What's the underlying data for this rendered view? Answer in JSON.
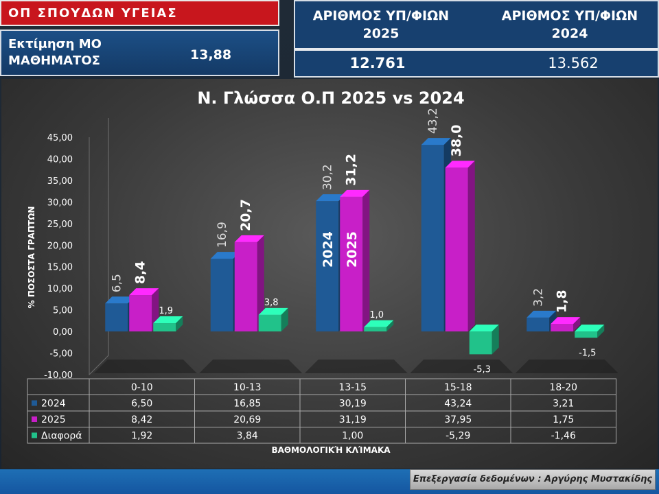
{
  "header": {
    "field_title": "ΟΠ ΣΠΟΥΔΩΝ ΥΓΕΙΑΣ",
    "estimate_label": "Εκτίμηση ΜΟ ΜΑΘΗΜΑΤΟΣ",
    "estimate_value": "13,88",
    "candidates_2025_label": "ΑΡΙΘΜΟΣ ΥΠ/ΦΙΩΝ 2025",
    "candidates_2024_label": "ΑΡΙΘΜΟΣ ΥΠ/ΦΙΩΝ 2024",
    "candidates_2025_value": "12.761",
    "candidates_2024_value": "13.562"
  },
  "footer": {
    "credit": "Επεξεργασία δεδομένων : Αργύρης Μυστακίδης"
  },
  "colors": {
    "title_red": "#c8161d",
    "panel_blue": "#17406f",
    "series_2024": "#1f5a96",
    "series_2025": "#c81fc8",
    "series_diff": "#21c28a"
  },
  "chart_data": {
    "type": "bar",
    "title": "Ν. Γλώσσα Ο.Π 2025 vs 2024",
    "xlabel": "ΒΑΘΜΟΛΟΓΙΚΉ ΚΛΊΜΑΚΑ",
    "ylabel": "% ΠΟΣΟΣΤΑ ΓΡΑΠΤΩΝ",
    "ylim": [
      -10,
      45
    ],
    "yticks": [
      "-10,00",
      "-5,00",
      "0,00",
      "5,00",
      "10,00",
      "15,00",
      "20,00",
      "25,00",
      "30,00",
      "35,00",
      "40,00",
      "45,00"
    ],
    "categories": [
      "0-10",
      "10-13",
      "13-15",
      "15-18",
      "18-20"
    ],
    "series": [
      {
        "name": "2024",
        "values": [
          6.5,
          16.85,
          30.19,
          43.24,
          3.21
        ],
        "table_labels": [
          "6,50",
          "16,85",
          "30,19",
          "43,24",
          "3,21"
        ],
        "bar_labels": [
          "6,5",
          "16,9",
          "30,2",
          "43,2",
          "3,2"
        ],
        "color": "#1f5a96"
      },
      {
        "name": "2025",
        "values": [
          8.42,
          20.69,
          31.19,
          37.95,
          1.75
        ],
        "table_labels": [
          "8,42",
          "20,69",
          "31,19",
          "37,95",
          "1,75"
        ],
        "bar_labels": [
          "8,4",
          "20,7",
          "31,2",
          "38,0",
          "1,8"
        ],
        "color": "#c81fc8"
      },
      {
        "name": "Διαφορά",
        "values": [
          1.92,
          3.84,
          1.0,
          -5.29,
          -1.46
        ],
        "table_labels": [
          "1,92",
          "3,84",
          "1,00",
          "-5,29",
          "-1,46"
        ],
        "bar_labels": [
          "1,9",
          "3,8",
          "1,0",
          "-5,3",
          "-1,5"
        ],
        "color": "#21c28a"
      }
    ],
    "in_bar_labels": [
      "2024",
      "2025"
    ],
    "grid": false,
    "legend": "data-table"
  }
}
